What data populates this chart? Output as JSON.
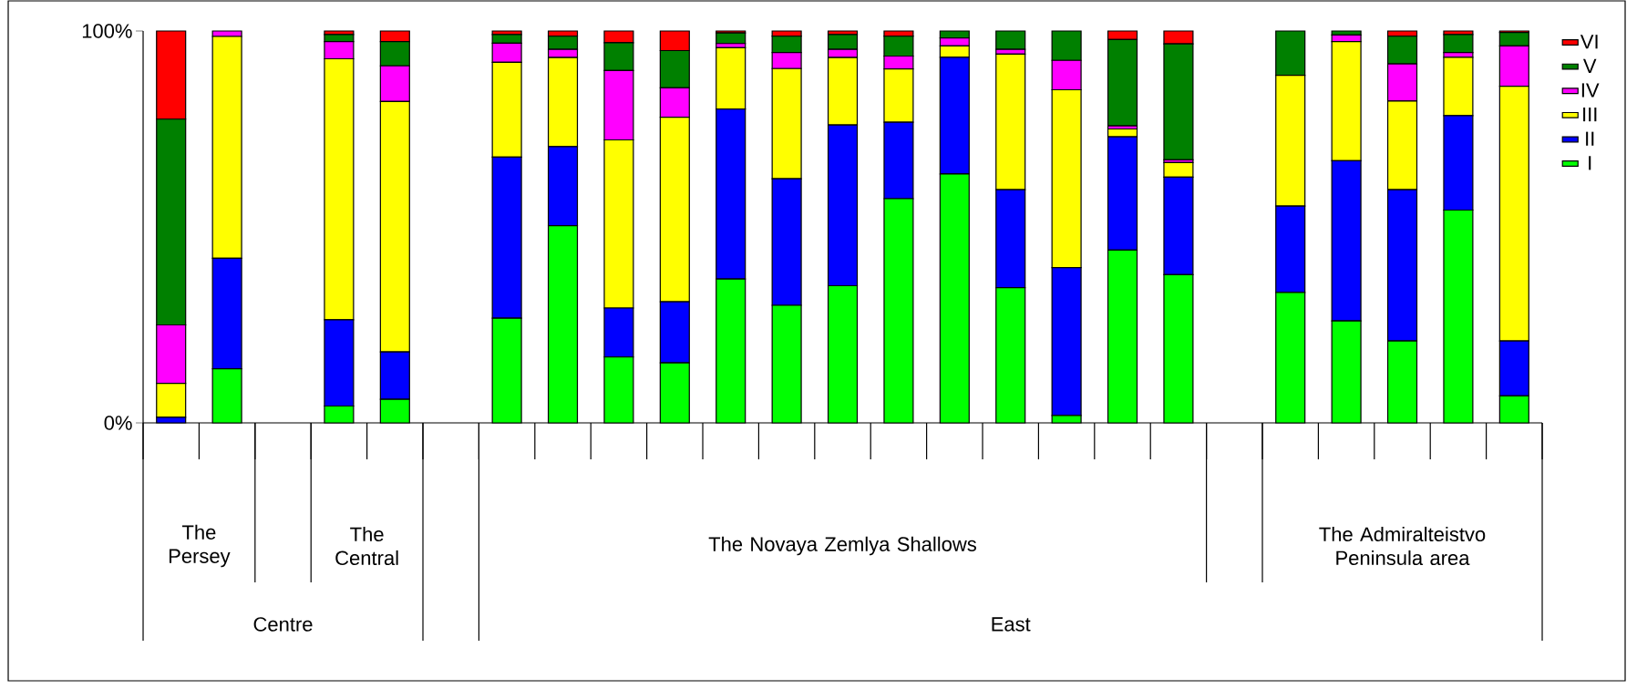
{
  "chart_data": {
    "type": "bar",
    "stacked": true,
    "legend": "right",
    "categories": [
      null,
      null,
      null,
      null,
      null,
      null,
      null,
      null,
      null,
      null,
      null,
      null,
      null,
      null,
      null,
      null,
      null,
      null,
      null,
      null,
      null,
      null,
      null,
      null,
      null
    ],
    "ylim": [
      0,
      100
    ],
    "yticks": [
      {
        "value": 0,
        "label": "0%"
      },
      {
        "value": 100,
        "label": "100%"
      }
    ],
    "series": [
      {
        "name": "I",
        "color": "#00ff00",
        "values": [
          0,
          13.8,
          null,
          4.3,
          6.0,
          null,
          26.7,
          50.3,
          16.8,
          15.3,
          36.7,
          30.0,
          35.0,
          57.2,
          63.5,
          34.5,
          1.9,
          44.1,
          37.8,
          null,
          33.3,
          26.0,
          20.9,
          54.3,
          6.9
        ]
      },
      {
        "name": "II",
        "color": "#0000ff",
        "values": [
          1.4,
          28.2,
          null,
          22.0,
          12.1,
          null,
          41.1,
          20.2,
          12.5,
          15.6,
          43.4,
          32.3,
          41.0,
          19.5,
          29.8,
          25.0,
          37.7,
          28.9,
          24.9,
          null,
          22.0,
          40.9,
          38.6,
          24.1,
          14.0
        ]
      },
      {
        "name": "III",
        "color": "#ffff00",
        "values": [
          8.7,
          56.6,
          null,
          66.6,
          63.9,
          null,
          24.2,
          22.7,
          42.9,
          47.1,
          15.6,
          28.1,
          17.2,
          13.6,
          2.9,
          34.6,
          45.4,
          2.0,
          3.7,
          null,
          33.4,
          30.4,
          22.6,
          14.9,
          65.0
        ]
      },
      {
        "name": "IV",
        "color": "#ff00ff",
        "values": [
          14.9,
          1.4,
          null,
          4.4,
          9.1,
          null,
          4.9,
          2.1,
          17.7,
          7.5,
          1.1,
          4.1,
          2.1,
          3.3,
          2.0,
          1.2,
          7.5,
          0.8,
          0.7,
          null,
          0,
          1.7,
          9.5,
          1.2,
          10.3
        ]
      },
      {
        "name": "V",
        "color": "#008000",
        "values": [
          52.5,
          0,
          null,
          1.8,
          6.2,
          null,
          2.2,
          3.4,
          7.1,
          9.5,
          2.7,
          4.2,
          3.8,
          5.1,
          1.8,
          4.7,
          7.5,
          22.0,
          29.6,
          null,
          11.3,
          1.0,
          7.1,
          4.6,
          3.4
        ]
      },
      {
        "name": "VI",
        "color": "#ff0000",
        "values": [
          22.5,
          0,
          null,
          0.9,
          2.7,
          null,
          0.9,
          1.3,
          3.0,
          5.0,
          0.5,
          1.3,
          0.9,
          1.3,
          0,
          0,
          0,
          2.2,
          3.3,
          null,
          0,
          0,
          1.3,
          0.9,
          0.4
        ]
      }
    ],
    "annotations": [
      "The Persey",
      "The Central",
      "The Novaya Zemlya Shallows",
      "The Admiralteistvo Peninsula area",
      "Centre",
      "East"
    ]
  }
}
